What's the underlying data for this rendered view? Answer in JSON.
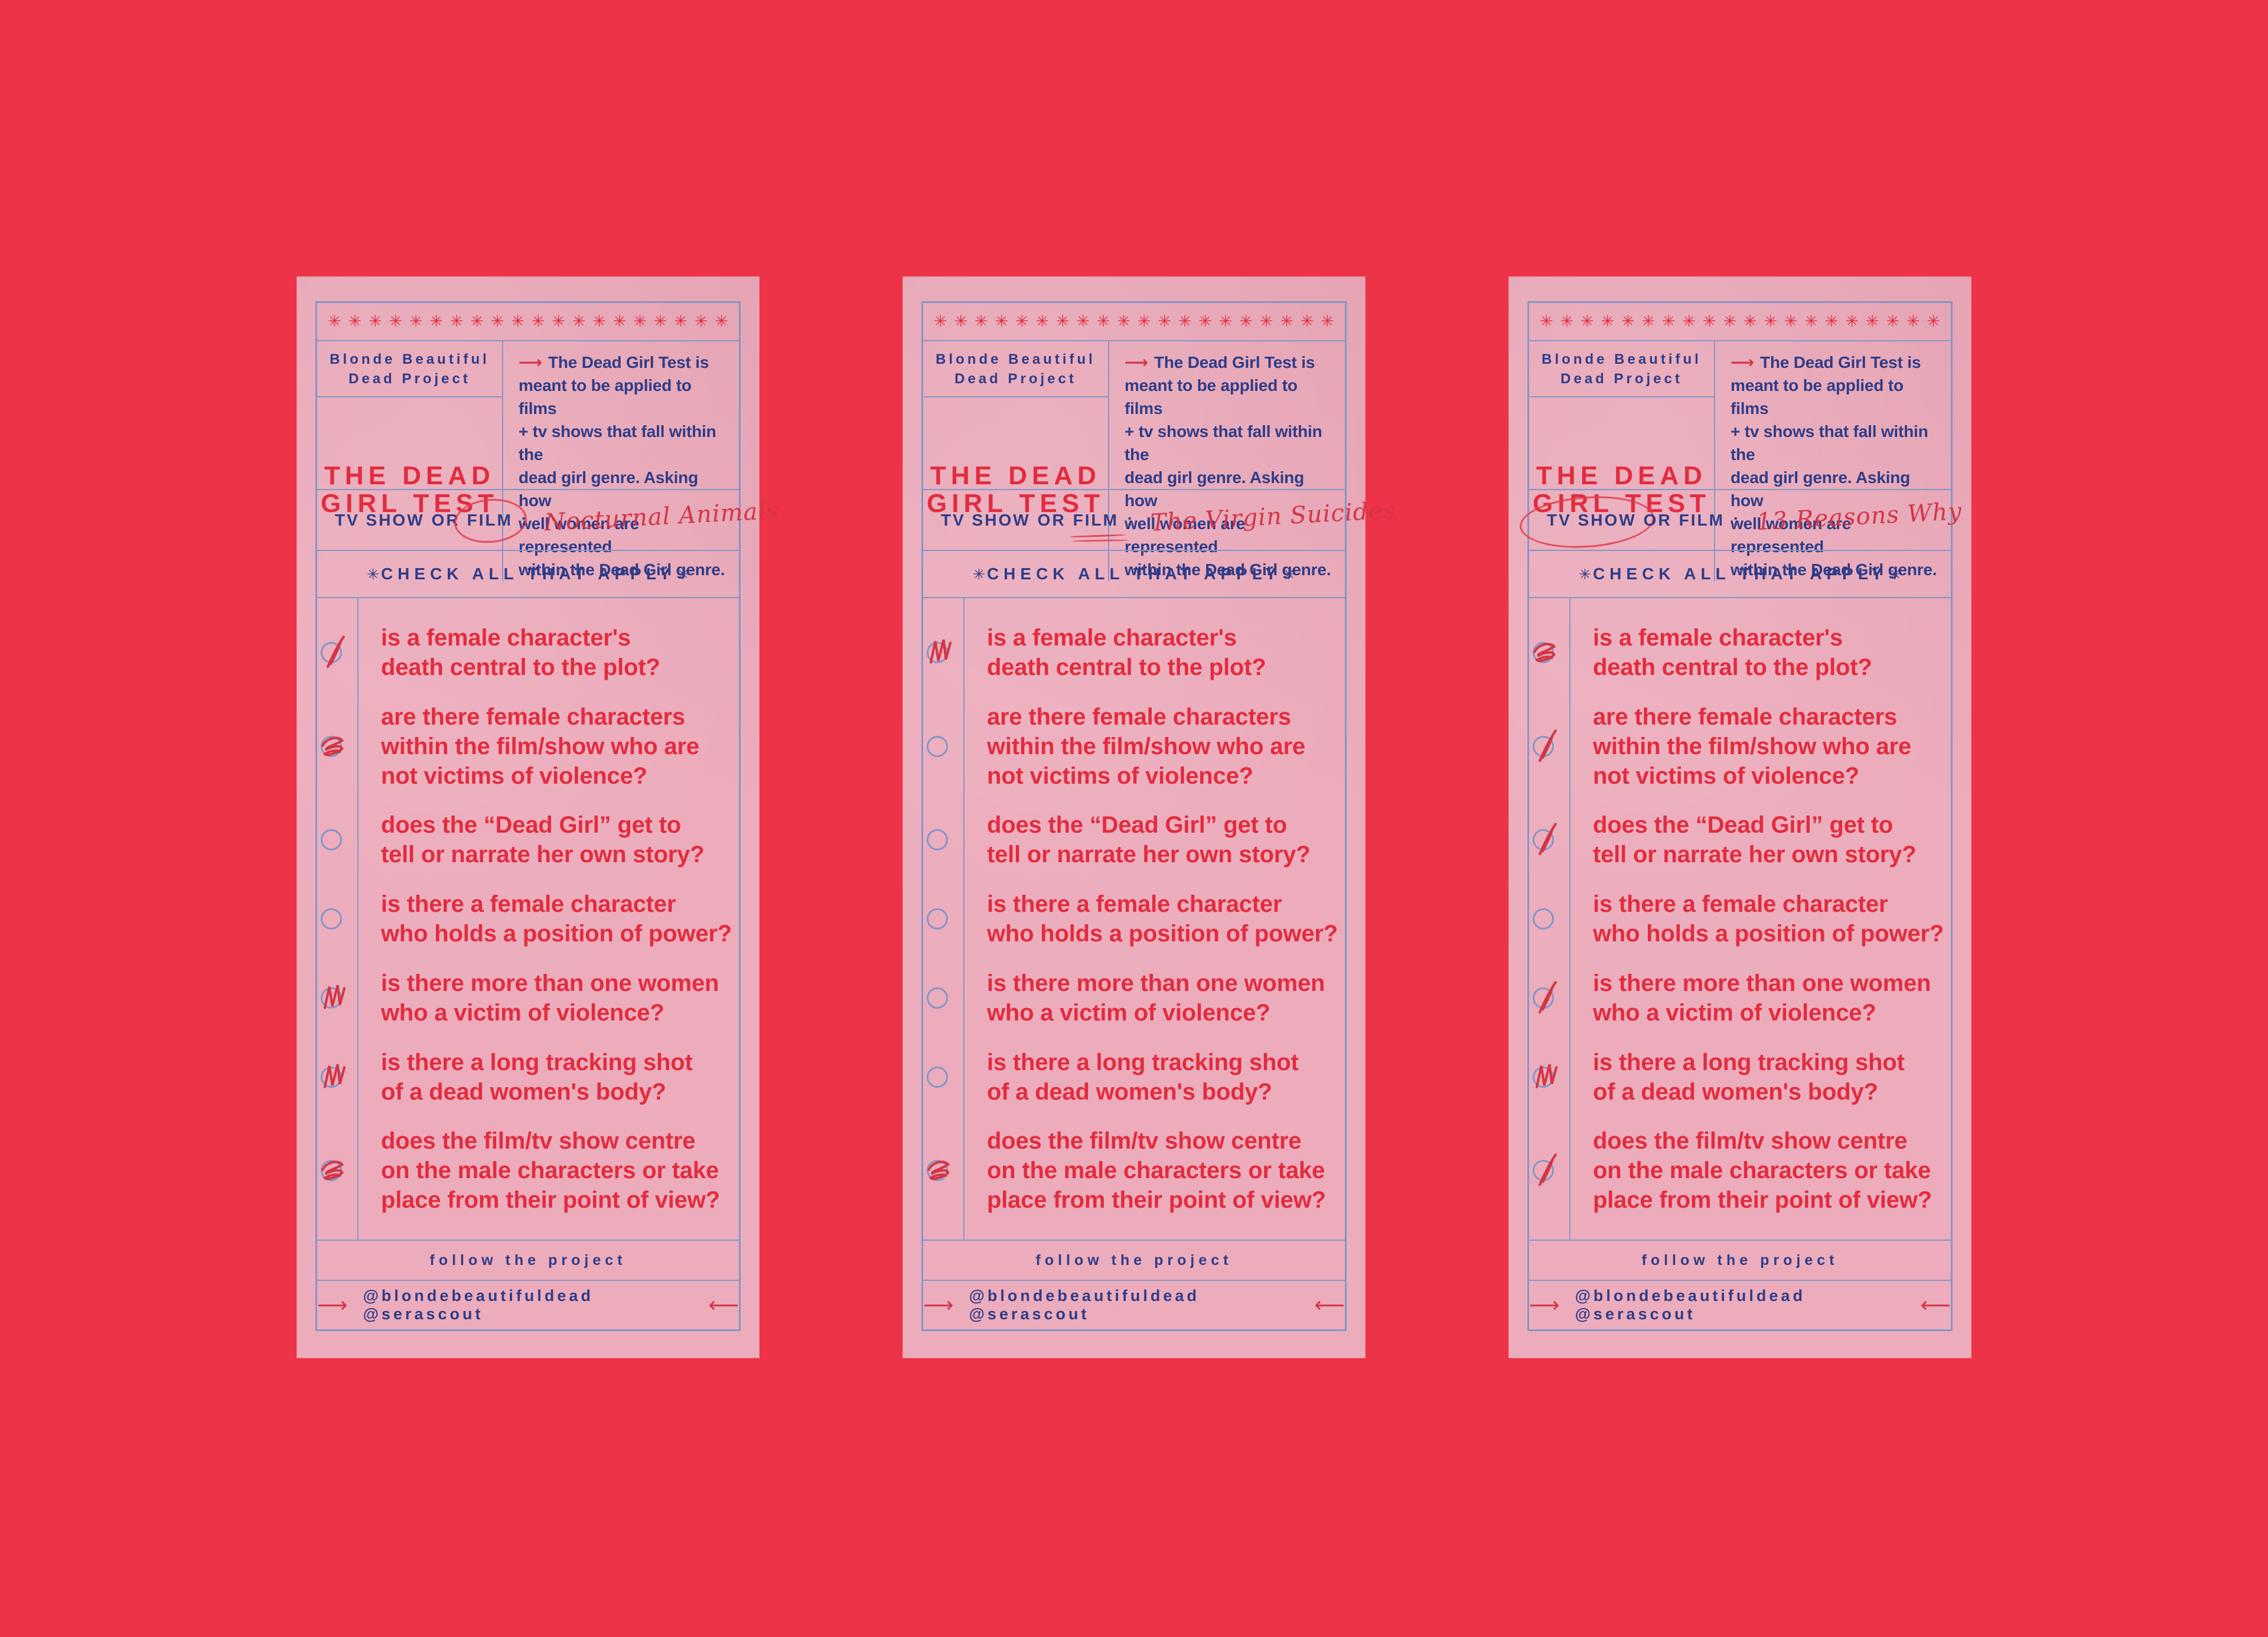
{
  "colors": {
    "background": "#ee3247",
    "paper": "#ecacbc",
    "border_blue": "#8496c6",
    "navy_text": "#2e3c88",
    "red_text": "#e22c3e",
    "handwriting_red": "#d43545"
  },
  "icons": {
    "arrow_right": "⟶",
    "arrow_left": "⟵"
  },
  "asterisk_row": {
    "char": "✳",
    "count": 20
  },
  "header": {
    "project_line1": "Blonde Beautiful",
    "project_line2": "Dead Project",
    "title_line1": "THE DEAD",
    "title_line2": "GIRL TEST",
    "description_lines": [
      "The Dead Girl Test is",
      "meant to be applied to films",
      "+ tv shows that fall within the",
      "dead girl genre. Asking how",
      "well women are represented",
      "within the Dead Girl genre."
    ]
  },
  "film_row": {
    "tv_show": "TV SHOW",
    "or": "OR",
    "film": "FILM",
    "colon": ":"
  },
  "check_header": {
    "asterisk": "✳",
    "text": "CHECK ALL THAT APPLY"
  },
  "questions": [
    [
      "is a female character's",
      "death central to the plot?"
    ],
    [
      "are there female characters",
      "within the film/show who are",
      "not victims of violence?"
    ],
    [
      "does the “Dead Girl” get to",
      "tell or narrate her own story?"
    ],
    [
      "is there a female character",
      "who holds a position of power?"
    ],
    [
      "is there more than one women",
      "who a victim of violence?"
    ],
    [
      "is there a long tracking shot",
      "of a dead women's body?"
    ],
    [
      "does the film/tv show centre",
      "on the male characters or take",
      "place from their point of view?"
    ]
  ],
  "footer": {
    "follow": "follow the project",
    "handles": "@blondebeautifuldead @serascout"
  },
  "cards": [
    {
      "title": "Nocturnal Animals",
      "selection": "film-circled",
      "checks": [
        true,
        true,
        false,
        false,
        true,
        true,
        true
      ],
      "marks": [
        "slash",
        "scribble",
        null,
        null,
        "zigzag",
        "zigzag",
        "scribble"
      ]
    },
    {
      "title": "The Virgin Suicides",
      "selection": "film-underlined",
      "checks": [
        true,
        false,
        false,
        false,
        false,
        false,
        true
      ],
      "marks": [
        "zigzag",
        null,
        null,
        null,
        null,
        null,
        "scribble"
      ]
    },
    {
      "title": "13 Reasons Why",
      "selection": "tvshow-circled",
      "checks": [
        true,
        true,
        true,
        false,
        true,
        true,
        true
      ],
      "marks": [
        "scribble",
        "slash",
        "slash",
        null,
        "slash",
        "zigzag",
        "slash"
      ]
    }
  ]
}
